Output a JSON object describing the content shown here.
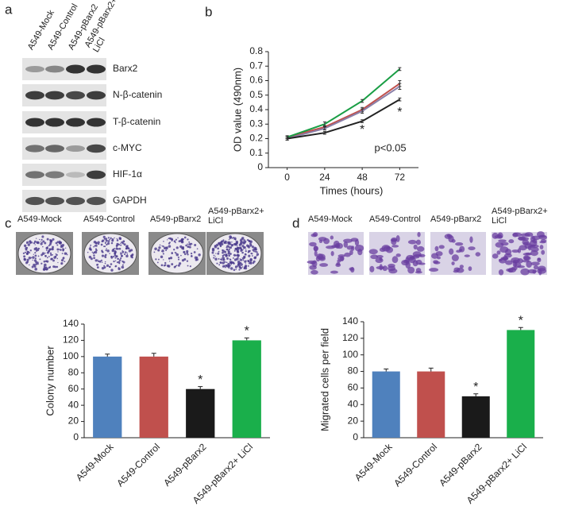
{
  "panel_labels": [
    "a",
    "b",
    "c",
    "d"
  ],
  "blot": {
    "columns": [
      "A549-Mock",
      "A549-Control",
      "A549-pBarx2",
      [
        "A549-pBarx2+",
        "LiCl"
      ]
    ],
    "rows": [
      "Barx2",
      "N-β-catenin",
      "T-β-catenin",
      "c-MYC",
      "HIF-1α",
      "GAPDH"
    ]
  },
  "colony_photos": {
    "labels": [
      "A549-Mock",
      "A549-Control",
      "A549-pBarx2",
      [
        "A549-pBarx2+",
        "LiCl"
      ]
    ]
  },
  "migration_photos": {
    "labels": [
      "A549-Mock",
      "A549-Control",
      "A549-pBarx2",
      [
        "A549-pBarx2+",
        "LiCl"
      ]
    ]
  },
  "chart_data": [
    {
      "type": "line",
      "ylabel": "OD value (490nm)",
      "xlabel": "Times (hours)",
      "x": [
        0,
        24,
        48,
        72
      ],
      "xlim": [
        -12,
        84
      ],
      "xticks": [
        0,
        24,
        48,
        72
      ],
      "ylim": [
        0,
        0.8
      ],
      "yticks": [
        0,
        0.1,
        0.2,
        0.3,
        0.4,
        0.5,
        0.6,
        0.7,
        0.8
      ],
      "series": [
        {
          "color": "#c0504d",
          "values": [
            0.21,
            0.28,
            0.4,
            0.58
          ],
          "errors": [
            0.01,
            0.01,
            0.015,
            0.02
          ]
        },
        {
          "color": "#8a7fa8",
          "values": [
            0.2,
            0.27,
            0.39,
            0.56
          ],
          "errors": [
            0.01,
            0.01,
            0.015,
            0.02
          ]
        },
        {
          "color": "#1a9e45",
          "values": [
            0.21,
            0.3,
            0.46,
            0.68
          ],
          "errors": [
            0.01,
            0.015,
            0.01,
            0.01
          ]
        },
        {
          "color": "#222222",
          "values": [
            0.2,
            0.24,
            0.32,
            0.47
          ],
          "errors": [
            0.01,
            0.01,
            0.01,
            0.01
          ]
        }
      ],
      "annotations": [
        {
          "text": "*",
          "x": 48,
          "y": 0.26
        },
        {
          "text": "*",
          "x": 72,
          "y": 0.38
        },
        {
          "text": "p<0.05",
          "x": 66,
          "y": 0.13
        }
      ]
    },
    {
      "type": "bar",
      "ylabel": "Colony number",
      "categories": [
        "A549-Mock",
        "A549-Control",
        "A549-pBarx2",
        "A549-pBarx2+ LiCl"
      ],
      "values": [
        100,
        100,
        60,
        120
      ],
      "errors": [
        3,
        4,
        3,
        3
      ],
      "colors": [
        "#4f81bd",
        "#c0504d",
        "#1a1a1a",
        "#1aaf4b"
      ],
      "markers": [
        null,
        null,
        "*",
        "*"
      ],
      "ylim": [
        0,
        140
      ],
      "yticks": [
        0,
        20,
        40,
        60,
        80,
        100,
        120,
        140
      ]
    },
    {
      "type": "bar",
      "ylabel": "Migrated cells per field",
      "categories": [
        "A549-Mock",
        "A549-Control",
        "A549-pBarx2",
        "A549-pBarx2+ LiCl"
      ],
      "values": [
        80,
        80,
        50,
        130
      ],
      "errors": [
        3,
        4,
        3,
        3
      ],
      "colors": [
        "#4f81bd",
        "#c0504d",
        "#1a1a1a",
        "#1aaf4b"
      ],
      "markers": [
        null,
        null,
        "*",
        "*"
      ],
      "ylim": [
        0,
        140
      ],
      "yticks": [
        0,
        20,
        40,
        60,
        80,
        100,
        120,
        140
      ]
    }
  ]
}
